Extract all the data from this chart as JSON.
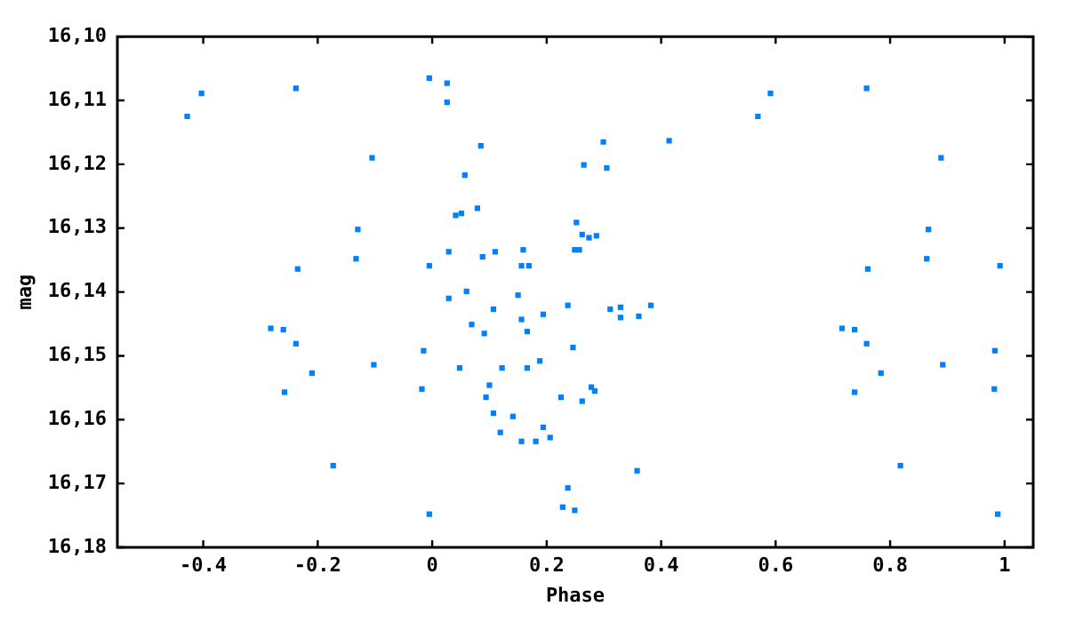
{
  "chart_data": {
    "type": "scatter",
    "xlabel": "Phase",
    "ylabel": "mag",
    "marker": "square",
    "grid": false,
    "legend": false,
    "xlim": [
      -0.55,
      1.05
    ],
    "xticks": [
      -0.4,
      -0.2,
      0,
      0.2,
      0.4,
      0.6,
      0.8,
      1
    ],
    "ylim": [
      16.18,
      16.1
    ],
    "yticks": [
      {
        "value": 16.1,
        "label": "16,10"
      },
      {
        "value": 16.11,
        "label": "16,11"
      },
      {
        "value": 16.12,
        "label": "16,12"
      },
      {
        "value": 16.13,
        "label": "16,13"
      },
      {
        "value": 16.14,
        "label": "16,14"
      },
      {
        "value": 16.15,
        "label": "16,15"
      },
      {
        "value": 16.16,
        "label": "16,16"
      },
      {
        "value": 16.17,
        "label": "16,17"
      },
      {
        "value": 16.18,
        "label": "16,18"
      }
    ],
    "series": [
      {
        "color": "#0080ff",
        "x": [
          -0.005,
          -0.403,
          -0.238,
          -0.428,
          -0.105,
          -0.13,
          -0.133,
          -0.235,
          -0.005,
          -0.282,
          -0.26,
          -0.238,
          -0.015,
          -0.102,
          -0.21,
          -0.258,
          -0.018,
          -0.173,
          -0.005,
          0.026,
          0.026,
          0.569,
          0.085,
          0.299,
          0.414,
          0.057,
          0.265,
          0.305,
          0.041,
          0.051,
          0.079,
          0.252,
          0.262,
          0.274,
          0.287,
          0.029,
          0.088,
          0.11,
          0.159,
          0.249,
          0.257,
          0.156,
          0.169,
          0.029,
          0.06,
          0.15,
          0.107,
          0.194,
          0.237,
          0.156,
          0.311,
          0.329,
          0.382,
          0.329,
          0.361,
          0.069,
          0.091,
          0.166,
          0.246,
          0.048,
          0.122,
          0.166,
          0.188,
          0.1,
          0.094,
          0.225,
          0.278,
          0.284,
          0.262,
          0.107,
          0.141,
          0.119,
          0.194,
          0.156,
          0.181,
          0.206,
          0.358,
          0.237,
          0.228,
          0.249,
          0.591,
          0.759,
          0.889,
          0.867,
          0.864,
          0.761,
          0.992,
          0.716,
          0.738,
          0.759,
          0.784,
          0.738,
          0.983,
          0.892,
          0.982,
          0.818,
          0.988
        ],
        "values": [
          16.1065,
          16.1089,
          16.1081,
          16.1125,
          16.119,
          16.1302,
          16.1348,
          16.1364,
          16.1359,
          16.1457,
          16.1459,
          16.1481,
          16.1492,
          16.1514,
          16.1527,
          16.1557,
          16.1552,
          16.1672,
          16.1748,
          16.1073,
          16.1103,
          16.1125,
          16.1171,
          16.1165,
          16.1163,
          16.1217,
          16.1201,
          16.1206,
          16.128,
          16.1277,
          16.1269,
          16.1291,
          16.131,
          16.1315,
          16.1312,
          16.1337,
          16.1345,
          16.1337,
          16.1334,
          16.1334,
          16.1334,
          16.1359,
          16.1359,
          16.141,
          16.1399,
          16.1405,
          16.1427,
          16.1435,
          16.1421,
          16.1443,
          16.1427,
          16.1424,
          16.1421,
          16.144,
          16.1438,
          16.1451,
          16.1465,
          16.1462,
          16.1487,
          16.1519,
          16.1519,
          16.1519,
          16.1508,
          16.1546,
          16.1565,
          16.1565,
          16.1549,
          16.1555,
          16.1571,
          16.159,
          16.1595,
          16.162,
          16.1612,
          16.1634,
          16.1634,
          16.1628,
          16.168,
          16.1707,
          16.1737,
          16.1742,
          16.1089,
          16.1081,
          16.119,
          16.1302,
          16.1348,
          16.1364,
          16.1359,
          16.1457,
          16.1459,
          16.1481,
          16.1527,
          16.1557,
          16.1492,
          16.1514,
          16.1552,
          16.1672,
          16.1748
        ]
      }
    ]
  }
}
